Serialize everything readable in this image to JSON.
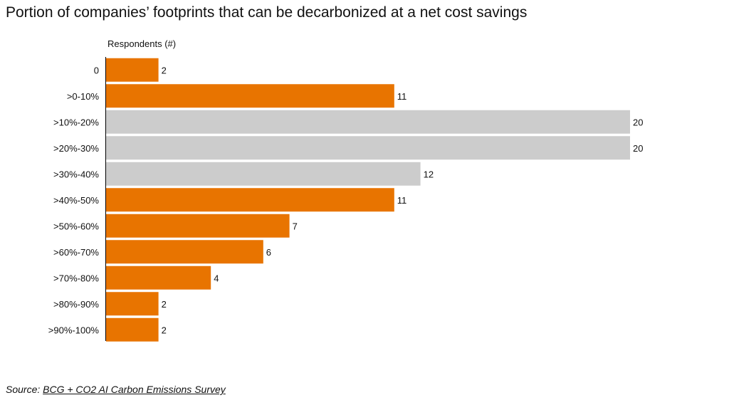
{
  "chart_data": {
    "type": "bar",
    "orientation": "horizontal",
    "title": "Portion of companies’ footprints that can be decarbonized at a net cost savings",
    "xlabel": "Respondents (#)",
    "ylabel": "",
    "categories": [
      ">90%-100%",
      ">80%-90%",
      ">70%-80%",
      ">60%-70%",
      ">50%-60%",
      ">40%-50%",
      ">30%-40%",
      ">20%-30%",
      ">10%-20%",
      ">0-10%",
      "0"
    ],
    "values": [
      2,
      2,
      4,
      6,
      7,
      11,
      12,
      20,
      20,
      11,
      2
    ],
    "highlight": [
      true,
      true,
      true,
      true,
      true,
      true,
      false,
      false,
      false,
      true,
      true
    ],
    "colors": {
      "highlight": "#E87400",
      "muted": "#CCCCCC",
      "axis": "#000000"
    },
    "xlim": [
      0,
      20
    ],
    "grid": false,
    "legend": "none",
    "source_prefix": "Source:",
    "source_text": "BCG + CO2 AI Carbon Emissions Survey"
  }
}
